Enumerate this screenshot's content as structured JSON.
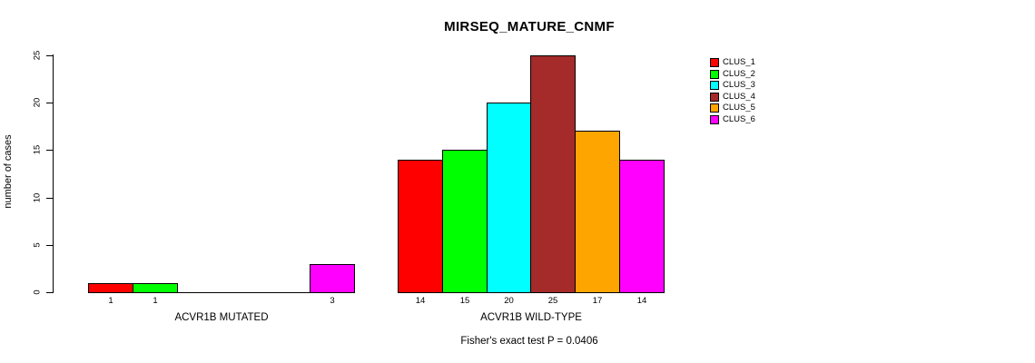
{
  "chart_data": {
    "type": "bar",
    "title": "MIRSEQ_MATURE_CNMF",
    "ylabel": "number of cases",
    "ylim": [
      0,
      25
    ],
    "yticks": [
      0,
      5,
      10,
      15,
      20,
      25
    ],
    "grid": false,
    "legend_position": "right",
    "categories": [
      "CLUS_1",
      "CLUS_2",
      "CLUS_3",
      "CLUS_4",
      "CLUS_5",
      "CLUS_6"
    ],
    "colors": [
      "#FF0000",
      "#00FF00",
      "#00FFFF",
      "#A52A2A",
      "#FFA500",
      "#FF00FF"
    ],
    "groups": [
      {
        "label": "ACVR1B MUTATED",
        "values": [
          1,
          1,
          0,
          0,
          0,
          3
        ]
      },
      {
        "label": "ACVR1B WILD-TYPE",
        "values": [
          14,
          15,
          20,
          25,
          17,
          14
        ]
      }
    ],
    "bar_value_labels_visible": true,
    "annotation": "Fisher's exact test P = 0.0406"
  }
}
